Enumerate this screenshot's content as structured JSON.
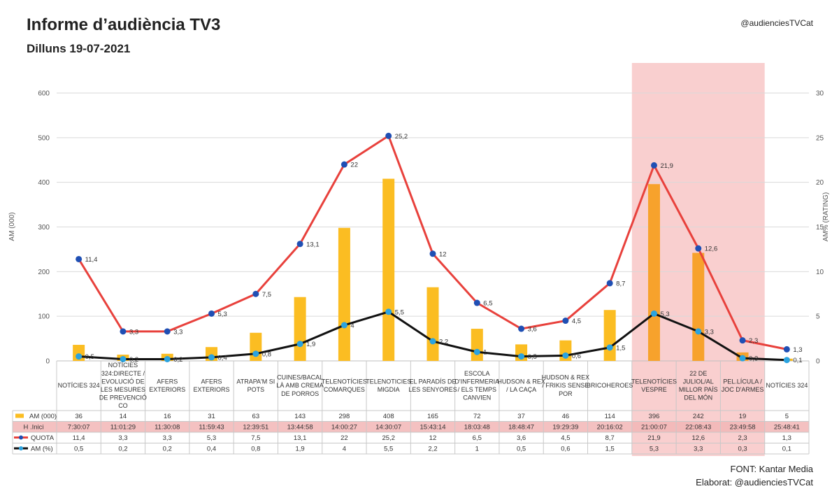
{
  "header": {
    "title": "Informe d’audiència TV3",
    "subtitle": "Dilluns 19-07-2021",
    "handle": "@audienciesTVCat"
  },
  "footer": {
    "source": "FONT: Kantar Media",
    "author": "Elaborat: @audienciesTVCat"
  },
  "chart_data": {
    "type": "bar",
    "xlabel": "",
    "ylabel": "AM (000)",
    "y2label": "AM% (RATING)",
    "ylim": [
      0,
      600
    ],
    "y2lim": [
      0,
      30
    ],
    "yticks": [
      0,
      100,
      200,
      300,
      400,
      500,
      600
    ],
    "y2ticks": [
      0,
      5,
      10,
      15,
      20,
      25,
      30
    ],
    "grid": true,
    "legend": "table-left",
    "highlight_range": [
      13,
      15
    ],
    "categories": [
      [
        "NOTÍCIES 324"
      ],
      [
        "NOTÍCIES",
        "324:DIRECTE /",
        "EVOLUCIÓ DE",
        "LES MESURES",
        "DE PREVENCIÓ",
        "CO"
      ],
      [
        "AFERS",
        "EXTERIORS"
      ],
      [
        "AFERS",
        "EXTERIORS"
      ],
      [
        "ATRAPA'M SI",
        "POTS"
      ],
      [
        "CUINES/BACAL",
        "LÀ AMB CREMA",
        "DE PORROS"
      ],
      [
        "TELENOTÍCIES",
        "COMARQUES"
      ],
      [
        "TELENOTICIES",
        "MIGDIA"
      ],
      [
        "EL PARADÍS DE",
        "LES SENYORES"
      ],
      [
        "ESCOLA",
        "D'INFERMERIA",
        "/ ELS TEMPS",
        "CANVIEN"
      ],
      [
        "HUDSON & REX",
        "/ LA CAÇA"
      ],
      [
        "HUDSON & REX",
        "/ FRIKIS SENSE",
        "POR"
      ],
      [
        "BRICOHEROES"
      ],
      [
        "TELENOTÍCIES",
        "VESPRE"
      ],
      [
        "22 DE",
        "JULIOL/AL",
        "MILLOR PAÍS",
        "DEL MÓN"
      ],
      [
        "PEL.LÍCULA /",
        "JOC D'ARMES"
      ],
      [
        "NOTÍCIES 324"
      ]
    ],
    "series": [
      {
        "name": "AM (000)",
        "kind": "bar",
        "color": "#fbbd22",
        "highlight_color": "#f7a22c",
        "values": [
          36,
          14,
          16,
          31,
          63,
          143,
          298,
          408,
          165,
          72,
          37,
          46,
          114,
          396,
          242,
          19,
          5
        ],
        "labels": [
          "36",
          "14",
          "16",
          "31",
          "63",
          "143",
          "298",
          "408",
          "165",
          "72",
          "37",
          "46",
          "114",
          "396",
          "242",
          "19",
          "5"
        ]
      },
      {
        "name": "H .Inici",
        "kind": "text",
        "color": "#f2b6b6",
        "values": [
          "7:30:07",
          "11:01:29",
          "11:30:08",
          "11:59:43",
          "12:39:51",
          "13:44:58",
          "14:00:27",
          "14:30:07",
          "15:43:14",
          "18:03:48",
          "18:48:47",
          "19:29:39",
          "20:16:02",
          "21:00:07",
          "22:08:43",
          "23:49:58",
          "25:48:41"
        ]
      },
      {
        "name": "QUOTA",
        "kind": "line",
        "axis": "right",
        "color": "#e8413c",
        "marker_color": "#1f4fb4",
        "values": [
          11.4,
          3.3,
          3.3,
          5.3,
          7.5,
          13.1,
          22,
          25.2,
          12,
          6.5,
          3.6,
          4.5,
          8.7,
          21.9,
          12.6,
          2.3,
          1.3
        ],
        "labels": [
          "11,4",
          "3,3",
          "3,3",
          "5,3",
          "7,5",
          "13,1",
          "22",
          "25,2",
          "12",
          "6,5",
          "3,6",
          "4,5",
          "8,7",
          "21,9",
          "12,6",
          "2,3",
          "1,3"
        ]
      },
      {
        "name": "AM (%)",
        "kind": "line",
        "axis": "right",
        "color": "#111111",
        "marker_color": "#2aa3e0",
        "values": [
          0.5,
          0.2,
          0.2,
          0.4,
          0.8,
          1.9,
          4,
          5.5,
          2.2,
          1,
          0.5,
          0.6,
          1.5,
          5.3,
          3.3,
          0.3,
          0.1
        ],
        "labels": [
          "0,5",
          "0,2",
          "0,2",
          "0,4",
          "0,8",
          "1,9",
          "4",
          "5,5",
          "2,2",
          "1",
          "0,5",
          "0,6",
          "1,5",
          "5,3",
          "3,3",
          "0,3",
          "0,1"
        ]
      }
    ]
  }
}
